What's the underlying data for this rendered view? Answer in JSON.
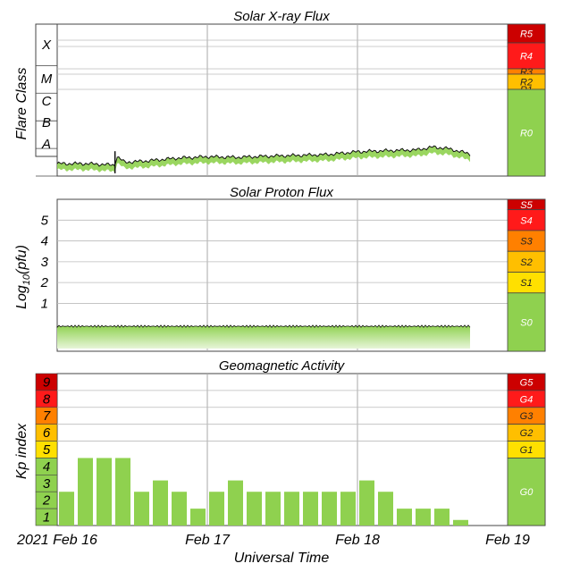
{
  "panels": {
    "xray": {
      "title": "Solar X-ray Flux",
      "ylabel": "Flare Class",
      "classes": [
        "X",
        "M",
        "C",
        "B",
        "A"
      ],
      "scale": [
        {
          "label": "R5",
          "color": "#cc0000"
        },
        {
          "label": "R4",
          "color": "#ff1a1a"
        },
        {
          "label": "R3",
          "color": "#ff8000"
        },
        {
          "label": "R2",
          "color": "#ffbf00"
        },
        {
          "label": "R1",
          "color": "#ffe000"
        },
        {
          "label": "R0",
          "color": "#8fd14f"
        }
      ]
    },
    "proton": {
      "title": "Solar Proton Flux",
      "ylabel_main": "Log",
      "ylabel_sub": "10",
      "ylabel_tail": "(pfu)",
      "ticks": [
        "5",
        "4",
        "3",
        "2",
        "1"
      ],
      "scale": [
        {
          "label": "S5",
          "color": "#cc0000"
        },
        {
          "label": "S4",
          "color": "#ff1a1a"
        },
        {
          "label": "S3",
          "color": "#ff8000"
        },
        {
          "label": "S2",
          "color": "#ffbf00"
        },
        {
          "label": "S1",
          "color": "#ffe000"
        },
        {
          "label": "S0",
          "color": "#8fd14f"
        }
      ]
    },
    "geomag": {
      "title": "Geomagnetic Activity",
      "ylabel": "Kp index",
      "ticks": [
        "9",
        "8",
        "7",
        "6",
        "5",
        "4",
        "3",
        "2",
        "1"
      ],
      "tick_colors": [
        "#cc0000",
        "#ff1a1a",
        "#ff8000",
        "#ffbf00",
        "#ffe000",
        "#8fd14f",
        "#8fd14f",
        "#8fd14f",
        "#8fd14f"
      ],
      "scale": [
        {
          "label": "G5",
          "color": "#cc0000"
        },
        {
          "label": "G4",
          "color": "#ff1a1a"
        },
        {
          "label": "G3",
          "color": "#ff8000"
        },
        {
          "label": "G2",
          "color": "#ffbf00"
        },
        {
          "label": "G1",
          "color": "#ffe000"
        },
        {
          "label": "G0",
          "color": "#8fd14f"
        }
      ]
    }
  },
  "xaxis": {
    "ticks": [
      "2021 Feb 16",
      "Feb 17",
      "Feb 18",
      "Feb 19"
    ],
    "label": "Universal Time"
  },
  "chart_data": [
    {
      "type": "line",
      "title": "Solar X-ray Flux",
      "ylabel": "Flare Class",
      "x_unit": "days since Feb 16 00:00 UT",
      "y_unit": "log10 flux (A = -8)",
      "xlim": [
        0,
        3
      ],
      "ylim": [
        -8.5,
        -3
      ],
      "x": [
        0,
        0.2,
        0.38,
        0.4,
        0.45,
        0.6,
        0.8,
        1.0,
        1.2,
        1.4,
        1.6,
        1.8,
        2.0,
        2.2,
        2.4,
        2.5,
        2.6,
        2.75
      ],
      "values": [
        -8.05,
        -8.05,
        -8.1,
        -7.8,
        -8.0,
        -7.95,
        -7.85,
        -7.8,
        -7.82,
        -7.78,
        -7.75,
        -7.72,
        -7.62,
        -7.58,
        -7.55,
        -7.45,
        -7.5,
        -7.7
      ]
    },
    {
      "type": "area",
      "title": "Solar Proton Flux",
      "ylabel": "Log10(pfu)",
      "xlim": [
        0,
        3
      ],
      "ylim": [
        -1.3,
        6
      ],
      "x": [
        0,
        0.5,
        1.0,
        1.5,
        2.0,
        2.5,
        2.75
      ],
      "values": [
        -0.1,
        -0.1,
        -0.1,
        -0.1,
        -0.1,
        -0.1,
        -0.1
      ]
    },
    {
      "type": "bar",
      "title": "Geomagnetic Activity",
      "ylabel": "Kp index",
      "ylim": [
        0,
        9
      ],
      "bar_width_days": 0.125,
      "x": [
        0,
        0.125,
        0.25,
        0.375,
        0.5,
        0.625,
        0.75,
        0.875,
        1.0,
        1.125,
        1.25,
        1.375,
        1.5,
        1.625,
        1.75,
        1.875,
        2.0,
        2.125,
        2.25,
        2.375,
        2.5,
        2.625,
        2.75,
        2.875
      ],
      "values": [
        2,
        4,
        4,
        4,
        2,
        2.67,
        2,
        1,
        2,
        2.67,
        2,
        2,
        2,
        2,
        2,
        2,
        2.67,
        2,
        1,
        1,
        1,
        0.33,
        0,
        0
      ]
    }
  ]
}
